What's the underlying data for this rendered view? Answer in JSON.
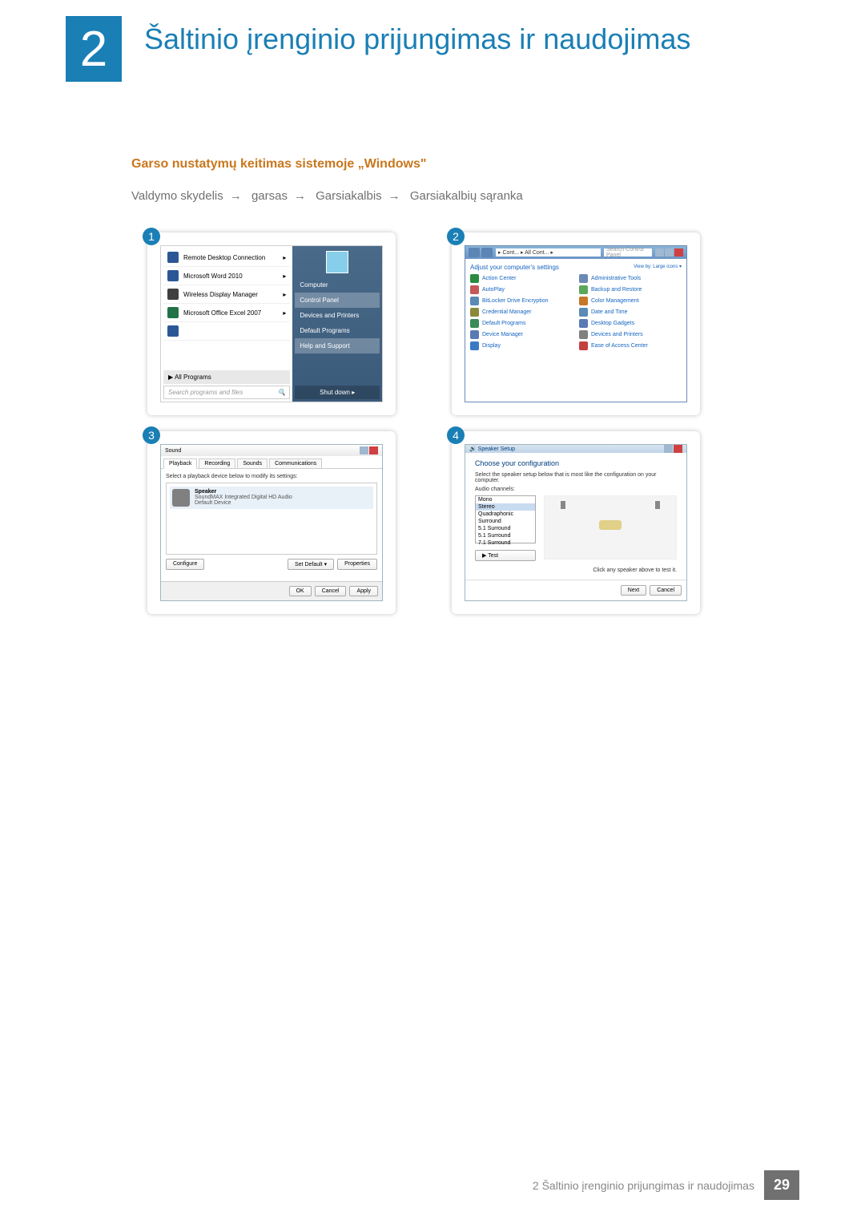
{
  "chapter": {
    "num": "2",
    "title": "Šaltinio įrenginio prijungimas ir naudojimas"
  },
  "section": {
    "title": "Garso nustatymų keitimas sistemoje „Windows\""
  },
  "breadcrumb": {
    "p1": "Valdymo skydelis",
    "p2": "garsas",
    "p3": "Garsiakalbis",
    "p4": "Garsiakalbių sąranka",
    "arrow": "→"
  },
  "steps": {
    "s1": "1",
    "s2": "2",
    "s3": "3",
    "s4": "4"
  },
  "panel1": {
    "start_left": {
      "items": [
        {
          "label": "Remote Desktop Connection",
          "color": "#2b5797"
        },
        {
          "label": "Microsoft Word 2010",
          "color": "#2b5797"
        },
        {
          "label": "Wireless Display Manager",
          "color": "#404040"
        },
        {
          "label": "Microsoft Office Excel 2007",
          "color": "#217346"
        }
      ],
      "empty_label": "",
      "all": "All Programs",
      "search_placeholder": "Search programs and files",
      "search_glyph": "🔍"
    },
    "start_right": {
      "items": [
        "Computer",
        "Control Panel",
        "Devices and Printers",
        "Default Programs",
        "Help and Support"
      ],
      "shutdown": "Shut down  ▸"
    }
  },
  "panel2": {
    "addr": "▸ Cont... ▸ All Cont... ▸",
    "search": "Search Control Panel",
    "heading": "Adjust your computer's settings",
    "viewby": "View by:   Large icons ▾",
    "items": [
      {
        "label": "Action Center",
        "color": "#2b8a3e"
      },
      {
        "label": "Administrative Tools",
        "color": "#6a8ab5"
      },
      {
        "label": "AutoPlay",
        "color": "#c45858"
      },
      {
        "label": "Backup and Restore",
        "color": "#5aa85a"
      },
      {
        "label": "BitLocker Drive Encryption",
        "color": "#5a8ab5"
      },
      {
        "label": "Color Management",
        "color": "#c47828"
      },
      {
        "label": "Credential Manager",
        "color": "#8a8a3a"
      },
      {
        "label": "Date and Time",
        "color": "#5a8ab5"
      },
      {
        "label": "Default Programs",
        "color": "#3a8a5a"
      },
      {
        "label": "Desktop Gadgets",
        "color": "#5a7ab5"
      },
      {
        "label": "Device Manager",
        "color": "#5a7ab5"
      },
      {
        "label": "Devices and Printers",
        "color": "#808080"
      },
      {
        "label": "Display",
        "color": "#3a7ac5"
      },
      {
        "label": "Ease of Access Center",
        "color": "#c54040"
      }
    ]
  },
  "panel3": {
    "title": "Sound",
    "tabs": [
      "Playback",
      "Recording",
      "Sounds",
      "Communications"
    ],
    "desc": "Select a playback device below to modify its settings:",
    "device": {
      "name": "Speaker",
      "desc1": "SoundMAX Integrated Digital HD Audio",
      "desc2": "Default Device"
    },
    "btn_configure": "Configure",
    "btn_setdefault": "Set Default ▾",
    "btn_properties": "Properties",
    "btn_ok": "OK",
    "btn_cancel": "Cancel",
    "btn_apply": "Apply"
  },
  "panel4": {
    "title": "Speaker Setup",
    "heading": "Choose your configuration",
    "desc": "Select the speaker setup below that is most like the configuration on your computer.",
    "channels_label": "Audio channels:",
    "channels": [
      "Mono",
      "Stereo",
      "Quadraphonic",
      "Surround",
      "5.1 Surround",
      "5.1 Surround",
      "7.1 Surround"
    ],
    "selected": "Stereo",
    "btn_test": "▶ Test",
    "hint": "Click any speaker above to test it.",
    "btn_next": "Next",
    "btn_cancel": "Cancel"
  },
  "footer": {
    "text": "2 Šaltinio įrenginio prijungimas ir naudojimas",
    "page": "29"
  }
}
